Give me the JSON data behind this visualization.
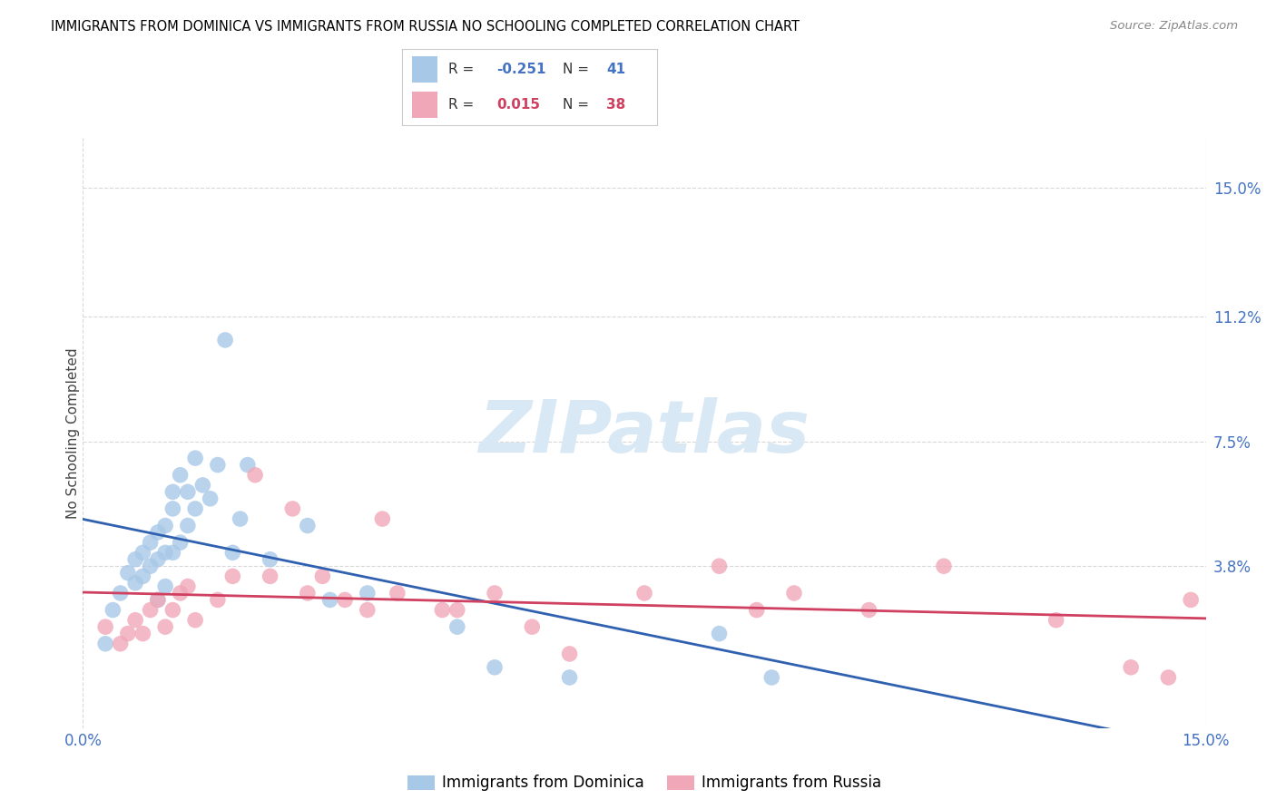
{
  "title": "IMMIGRANTS FROM DOMINICA VS IMMIGRANTS FROM RUSSIA NO SCHOOLING COMPLETED CORRELATION CHART",
  "source": "Source: ZipAtlas.com",
  "ylabel": "No Schooling Completed",
  "yticks": [
    0.0,
    0.038,
    0.075,
    0.112,
    0.15
  ],
  "ytick_labels": [
    "",
    "3.8%",
    "7.5%",
    "11.2%",
    "15.0%"
  ],
  "xtick_labels": [
    "0.0%",
    "15.0%"
  ],
  "xlim": [
    0.0,
    0.15
  ],
  "ylim": [
    -0.01,
    0.165
  ],
  "R_dominica": "-0.251",
  "N_dominica": "41",
  "R_russia": "0.015",
  "N_russia": "38",
  "color_dominica": "#a8c8e8",
  "color_russia": "#f0a8b8",
  "color_line_dominica": "#3060b0",
  "color_line_russia": "#d04060",
  "watermark_text": "ZIPatlas",
  "watermark_color": "#d8e8f4",
  "legend_label_1": "Immigrants from Dominica",
  "legend_label_2": "Immigrants from Russia",
  "background_color": "#ffffff",
  "grid_color": "#d8d8d8",
  "dominica_x": [
    0.003,
    0.004,
    0.005,
    0.006,
    0.007,
    0.007,
    0.008,
    0.008,
    0.009,
    0.009,
    0.01,
    0.01,
    0.01,
    0.011,
    0.011,
    0.011,
    0.012,
    0.012,
    0.012,
    0.013,
    0.013,
    0.014,
    0.014,
    0.015,
    0.015,
    0.016,
    0.017,
    0.018,
    0.019,
    0.02,
    0.021,
    0.022,
    0.025,
    0.03,
    0.033,
    0.038,
    0.05,
    0.055,
    0.065,
    0.085,
    0.092
  ],
  "dominica_y": [
    0.015,
    0.025,
    0.03,
    0.036,
    0.033,
    0.04,
    0.035,
    0.042,
    0.038,
    0.045,
    0.028,
    0.04,
    0.048,
    0.032,
    0.042,
    0.05,
    0.055,
    0.042,
    0.06,
    0.045,
    0.065,
    0.05,
    0.06,
    0.055,
    0.07,
    0.062,
    0.058,
    0.068,
    0.105,
    0.042,
    0.052,
    0.068,
    0.04,
    0.05,
    0.028,
    0.03,
    0.02,
    0.008,
    0.005,
    0.018,
    0.005
  ],
  "russia_x": [
    0.003,
    0.005,
    0.006,
    0.007,
    0.008,
    0.009,
    0.01,
    0.011,
    0.012,
    0.013,
    0.014,
    0.015,
    0.018,
    0.02,
    0.023,
    0.025,
    0.028,
    0.03,
    0.032,
    0.035,
    0.038,
    0.04,
    0.042,
    0.048,
    0.05,
    0.055,
    0.06,
    0.065,
    0.075,
    0.085,
    0.09,
    0.095,
    0.105,
    0.115,
    0.13,
    0.14,
    0.145,
    0.148
  ],
  "russia_y": [
    0.02,
    0.015,
    0.018,
    0.022,
    0.018,
    0.025,
    0.028,
    0.02,
    0.025,
    0.03,
    0.032,
    0.022,
    0.028,
    0.035,
    0.065,
    0.035,
    0.055,
    0.03,
    0.035,
    0.028,
    0.025,
    0.052,
    0.03,
    0.025,
    0.025,
    0.03,
    0.02,
    0.012,
    0.03,
    0.038,
    0.025,
    0.03,
    0.025,
    0.038,
    0.022,
    0.008,
    0.005,
    0.028
  ]
}
